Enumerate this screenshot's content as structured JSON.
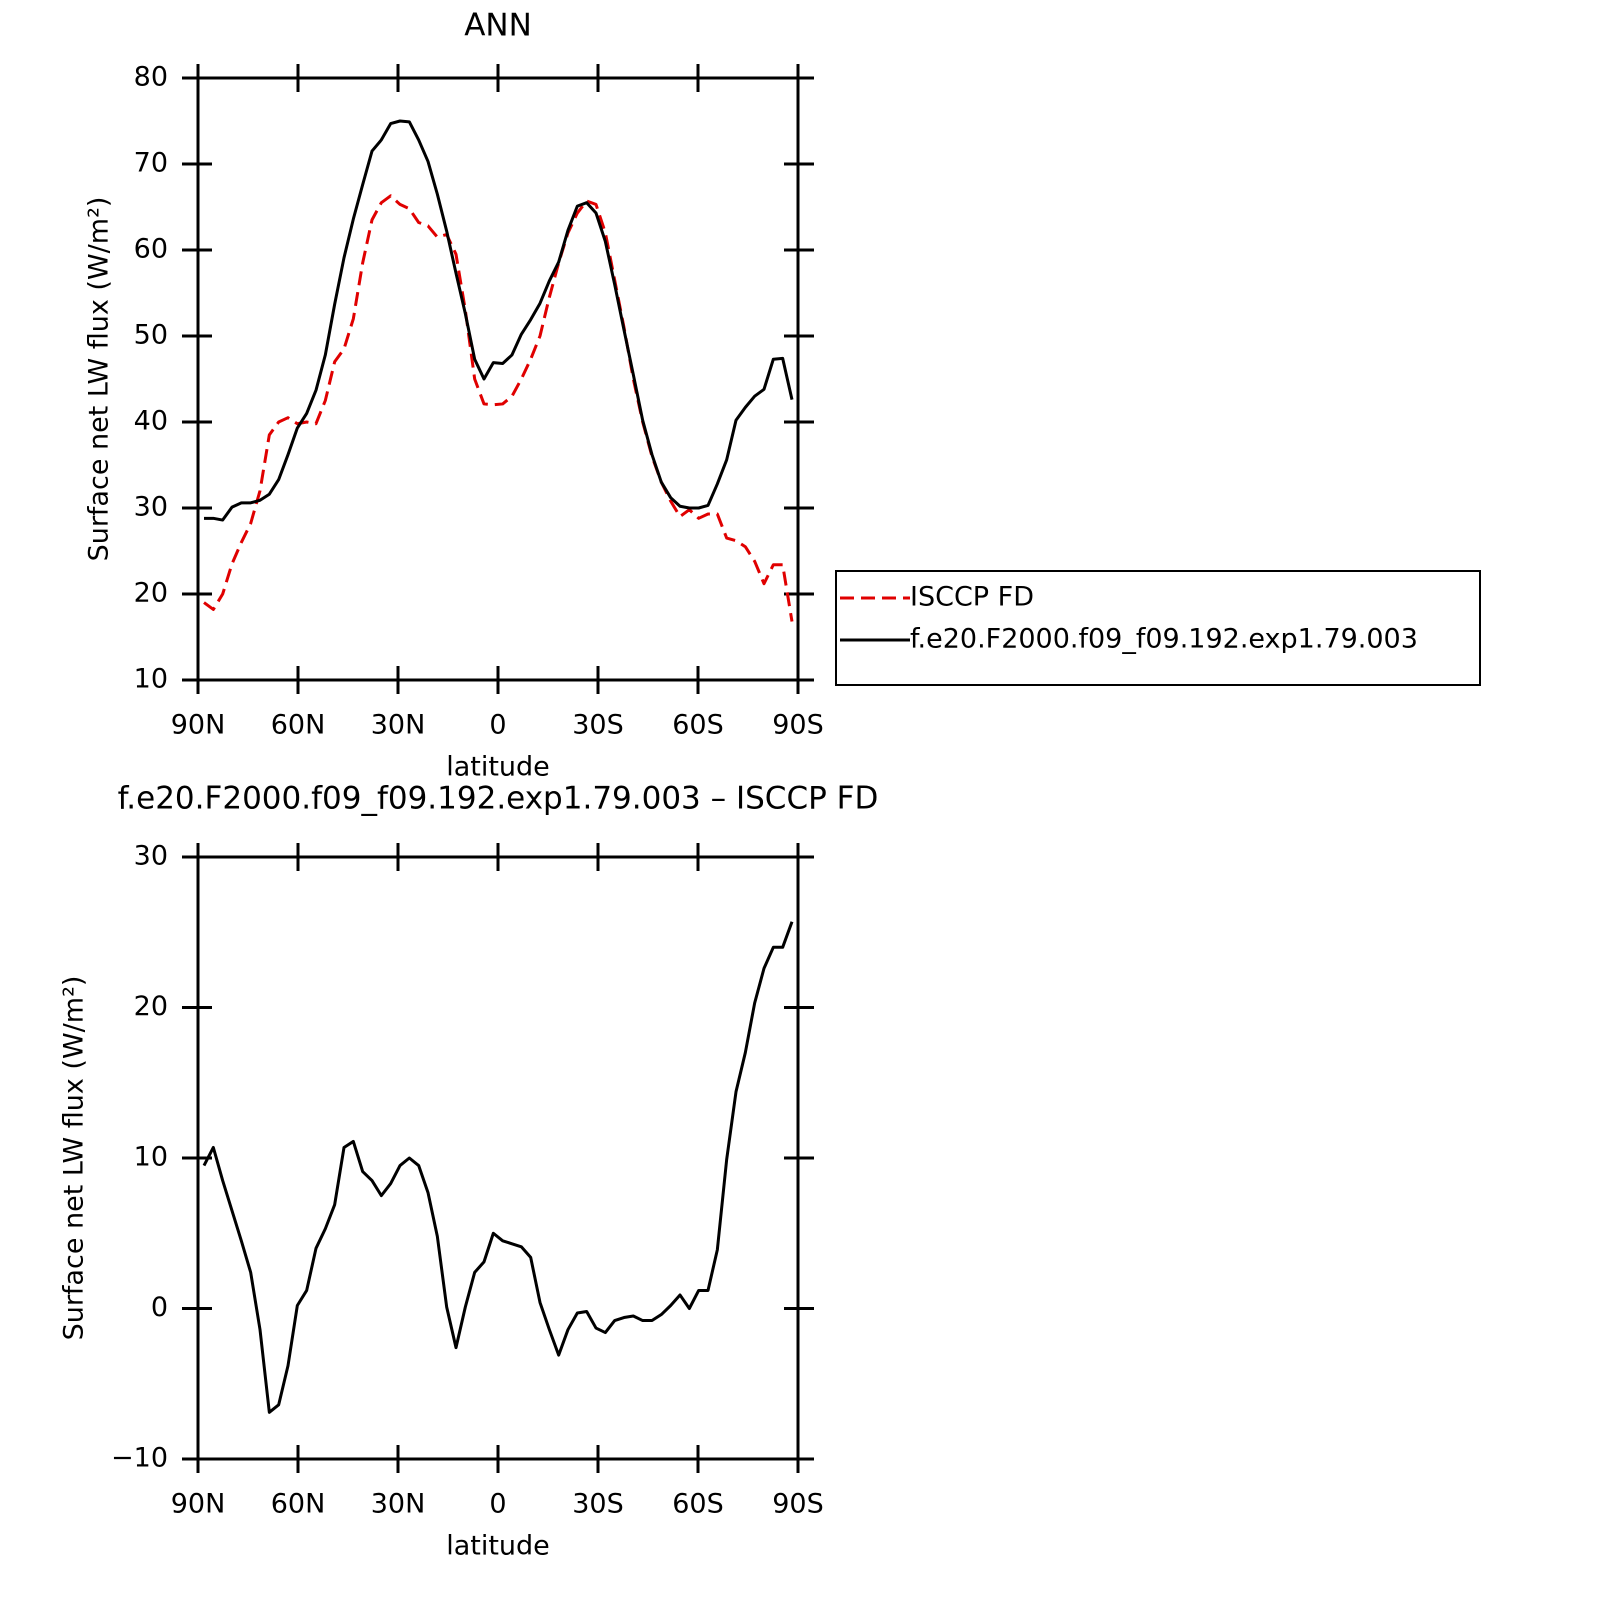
{
  "chart_data": [
    {
      "type": "line",
      "title": "ANN",
      "xlabel": "latitude",
      "ylabel": "Surface net LW flux (W/m²)",
      "x": [
        88.2,
        85.4,
        82.6,
        79.8,
        77,
        74.2,
        71.4,
        68.6,
        65.8,
        63,
        60.2,
        57.4,
        54.6,
        51.8,
        49,
        46.2,
        43.4,
        40.6,
        37.8,
        35,
        32.2,
        29.4,
        26.6,
        23.8,
        21,
        18.2,
        15.4,
        12.6,
        9.8,
        7,
        4.2,
        1.4,
        -1.4,
        -4.2,
        -7,
        -9.8,
        -12.6,
        -15.4,
        -18.2,
        -21,
        -23.8,
        -26.6,
        -29.4,
        -32.2,
        -35,
        -37.8,
        -40.6,
        -43.4,
        -46.2,
        -49,
        -51.8,
        -54.6,
        -57.4,
        -60.2,
        -63,
        -65.8,
        -68.6,
        -71.4,
        -74.2,
        -77,
        -79.8,
        -82.6,
        -85.4,
        -88.2
      ],
      "xlim": [
        90,
        -90
      ],
      "xticks": [
        {
          "value": 90,
          "label": "90N"
        },
        {
          "value": 60,
          "label": "60N"
        },
        {
          "value": 30,
          "label": "30N"
        },
        0,
        {
          "value": -30,
          "label": "30S"
        },
        {
          "value": -60,
          "label": "60S"
        },
        {
          "value": -90,
          "label": "90S"
        }
      ],
      "ylim": [
        10,
        80
      ],
      "yticks": [
        10,
        20,
        30,
        40,
        50,
        60,
        70,
        80
      ],
      "legend": "right",
      "series": [
        {
          "name": "ISCCP FD",
          "color": "#e00000",
          "dash": true,
          "values": [
            19,
            18.2,
            20,
            23.5,
            26,
            28.2,
            32,
            38.5,
            40,
            40.5,
            39.8,
            40,
            39.8,
            42.5,
            47,
            48.5,
            52,
            58.5,
            63.5,
            65.5,
            66.3,
            65.3,
            64.8,
            63.2,
            62.8,
            61.5,
            61.8,
            59.5,
            53,
            45,
            42.1,
            42,
            42.1,
            43,
            45,
            47.3,
            50,
            54.5,
            58.5,
            62,
            64.3,
            65.7,
            65.3,
            62,
            56.5,
            51,
            45,
            40,
            36,
            33,
            30.8,
            29,
            29.8,
            28.8,
            29.3,
            29.3,
            26.5,
            26.2,
            25.5,
            23.8,
            21.2,
            23.4,
            23.4,
            16.8
          ]
        },
        {
          "name": "f.e20.F2000.f09_f09.192.exp1.79.003",
          "color": "#000000",
          "dash": false,
          "values": [
            28.8,
            28.8,
            28.6,
            30.1,
            30.6,
            30.6,
            30.9,
            31.6,
            33.3,
            36.2,
            39.3,
            41,
            43.7,
            47.8,
            53.7,
            59.1,
            63.6,
            67.6,
            71.5,
            72.8,
            74.7,
            75,
            74.9,
            72.8,
            70.3,
            66.5,
            62.2,
            57.3,
            52.6,
            47.3,
            45,
            46.9,
            46.8,
            47.8,
            50.2,
            51.9,
            53.8,
            56.4,
            58.6,
            62.3,
            65.1,
            65.5,
            64.3,
            61,
            56,
            50.7,
            45.5,
            40.2,
            36.2,
            33,
            31.2,
            30.2,
            30,
            30,
            30.3,
            32.8,
            35.6,
            40.2,
            41.7,
            43,
            43.8,
            47.3,
            47.4,
            42.6
          ]
        }
      ]
    },
    {
      "type": "line",
      "title": "f.e20.F2000.f09_f09.192.exp1.79.003 – ISCCP FD",
      "xlabel": "latitude",
      "ylabel": "Surface net LW flux (W/m²)",
      "x": [
        88.2,
        85.4,
        82.6,
        79.8,
        77,
        74.2,
        71.4,
        68.6,
        65.8,
        63,
        60.2,
        57.4,
        54.6,
        51.8,
        49,
        46.2,
        43.4,
        40.6,
        37.8,
        35,
        32.2,
        29.4,
        26.6,
        23.8,
        21,
        18.2,
        15.4,
        12.6,
        9.8,
        7,
        4.2,
        1.4,
        -1.4,
        -4.2,
        -7,
        -9.8,
        -12.6,
        -15.4,
        -18.2,
        -21,
        -23.8,
        -26.6,
        -29.4,
        -32.2,
        -35,
        -37.8,
        -40.6,
        -43.4,
        -46.2,
        -49,
        -51.8,
        -54.6,
        -57.4,
        -60.2,
        -63,
        -65.8,
        -68.6,
        -71.4,
        -74.2,
        -77,
        -79.8,
        -82.6,
        -85.4,
        -88.2
      ],
      "xlim": [
        90,
        -90
      ],
      "xticks": [
        {
          "value": 90,
          "label": "90N"
        },
        {
          "value": 60,
          "label": "60N"
        },
        {
          "value": 30,
          "label": "30N"
        },
        0,
        {
          "value": -30,
          "label": "30S"
        },
        {
          "value": -60,
          "label": "60S"
        },
        {
          "value": -90,
          "label": "90S"
        }
      ],
      "ylim": [
        -10,
        30
      ],
      "yticks": [
        {
          "value": -10,
          "label": "−10"
        },
        0,
        10,
        20,
        30
      ],
      "color": "#000000",
      "values": [
        9.5,
        10.7,
        8.5,
        6.5,
        4.5,
        2.4,
        -1.4,
        -6.9,
        -6.4,
        -3.8,
        0.2,
        1.2,
        4,
        5.3,
        6.9,
        10.7,
        11.1,
        9.1,
        8.5,
        7.5,
        8.3,
        9.5,
        10,
        9.5,
        7.7,
        4.8,
        0.1,
        -2.6,
        0.1,
        2.4,
        3.1,
        5,
        4.5,
        4.3,
        4.1,
        3.4,
        0.4,
        -1.4,
        -3.1,
        -1.4,
        -0.3,
        -0.2,
        -1.3,
        -1.6,
        -0.8,
        -0.6,
        -0.5,
        -0.8,
        -0.8,
        -0.4,
        0.2,
        0.9,
        0,
        1.2,
        1.2,
        3.9,
        9.9,
        14.4,
        17,
        20.3,
        22.6,
        24,
        24,
        25.7
      ]
    }
  ]
}
